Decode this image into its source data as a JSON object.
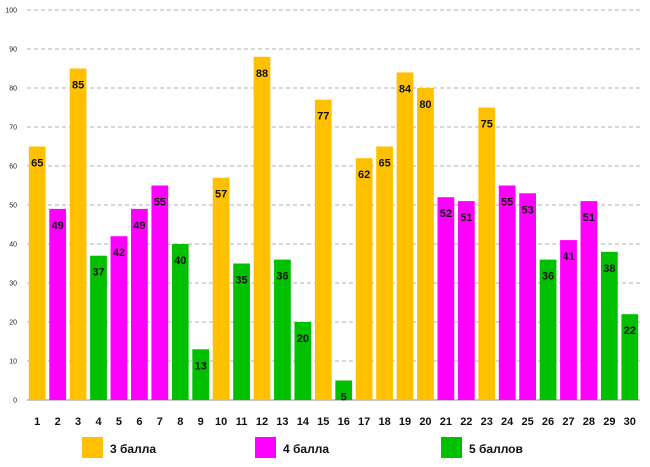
{
  "chart_data": {
    "type": "bar",
    "title": "",
    "xlabel": "",
    "ylabel": "",
    "ylim": [
      0,
      100
    ],
    "yticks": [
      0,
      10,
      20,
      30,
      40,
      50,
      60,
      70,
      80,
      90,
      100
    ],
    "grid": true,
    "categories": [
      "1",
      "2",
      "3",
      "4",
      "5",
      "6",
      "7",
      "8",
      "9",
      "10",
      "11",
      "12",
      "13",
      "14",
      "15",
      "16",
      "17",
      "18",
      "19",
      "20",
      "21",
      "22",
      "23",
      "24",
      "25",
      "26",
      "27",
      "28",
      "29",
      "30"
    ],
    "values": [
      65,
      49,
      85,
      37,
      42,
      49,
      55,
      40,
      13,
      57,
      35,
      88,
      36,
      20,
      77,
      5,
      62,
      65,
      84,
      80,
      52,
      51,
      75,
      55,
      53,
      36,
      41,
      51,
      38,
      22
    ],
    "groups": [
      0,
      1,
      0,
      2,
      1,
      1,
      1,
      2,
      2,
      0,
      2,
      0,
      2,
      2,
      0,
      2,
      0,
      0,
      0,
      0,
      1,
      1,
      0,
      1,
      1,
      2,
      1,
      1,
      2,
      2
    ],
    "legend": [
      {
        "label": "3 балла",
        "color": "#ffc000"
      },
      {
        "label": "4 балла",
        "color": "#ff00ff"
      },
      {
        "label": "5 баллов",
        "color": "#00c000"
      }
    ],
    "legend_position": "bottom"
  }
}
